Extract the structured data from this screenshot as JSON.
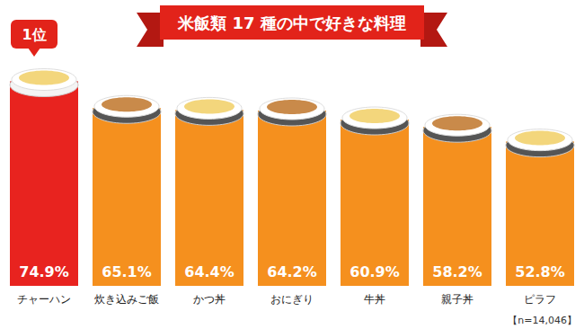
{
  "chart_data": {
    "type": "bar",
    "title": "米飯類 17 種の中で好きな料理",
    "categories": [
      "チャーハン",
      "炊き込みご飯",
      "かつ丼",
      "おにぎり",
      "牛丼",
      "親子丼",
      "ピラフ"
    ],
    "values": [
      74.9,
      65.1,
      64.4,
      64.2,
      60.9,
      58.2,
      52.8
    ],
    "value_labels": [
      "74.9%",
      "65.1%",
      "64.4%",
      "64.2%",
      "60.9%",
      "58.2%",
      "52.8%"
    ],
    "colors": [
      "#e8231f",
      "#f5901e",
      "#f5901e",
      "#f5901e",
      "#f5901e",
      "#f5901e",
      "#f5901e"
    ],
    "ylim": [
      0,
      80
    ],
    "yticks": [
      0,
      80
    ],
    "grid": false,
    "data_labels": true,
    "tick_labels": "x",
    "annotations": [
      "1位",
      "【n=14,046】"
    ]
  }
}
